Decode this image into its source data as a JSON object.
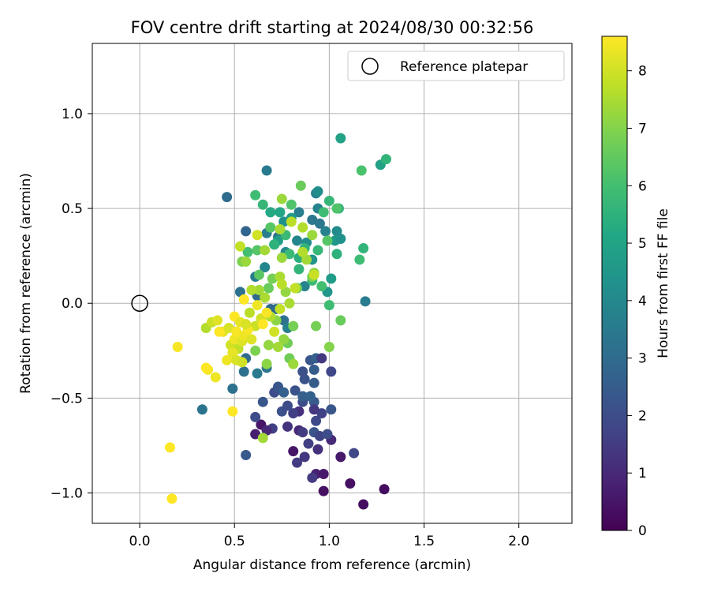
{
  "chart_data": {
    "type": "scatter",
    "title": "FOV centre drift starting at 2024/08/30 00:32:56",
    "xlabel": "Angular distance from reference (arcmin)",
    "ylabel": "Rotation from reference (arcmin)",
    "xlim": [
      -0.25,
      2.28
    ],
    "ylim": [
      -1.16,
      1.37
    ],
    "xticks": [
      0.0,
      0.5,
      1.0,
      1.5,
      2.0
    ],
    "xtick_labels": [
      "0.0",
      "0.5",
      "1.0",
      "1.5",
      "2.0"
    ],
    "yticks": [
      1.0,
      0.5,
      0.0,
      -0.5,
      -1.0
    ],
    "ytick_labels": [
      "1.0",
      "0.5",
      "0.0",
      "−0.5",
      "−1.0"
    ],
    "grid": true,
    "legend": {
      "location": "upper right",
      "entries": [
        {
          "label": "Reference platepar",
          "marker": "open-circle"
        }
      ]
    },
    "reference_point": {
      "x": 0.0,
      "y": 0.0
    },
    "colorbar": {
      "label": "Hours from first FF file",
      "colormap": "viridis",
      "range": [
        0,
        8.6
      ],
      "ticks": [
        0,
        1,
        2,
        3,
        4,
        5,
        6,
        7,
        8
      ]
    },
    "points": [
      {
        "x": 1.18,
        "y": -1.06,
        "h": 0.3
      },
      {
        "x": 1.29,
        "y": -0.98,
        "h": 0.3
      },
      {
        "x": 1.11,
        "y": -0.95,
        "h": 0.4
      },
      {
        "x": 0.97,
        "y": -0.99,
        "h": 0.4
      },
      {
        "x": 0.93,
        "y": -0.9,
        "h": 0.8
      },
      {
        "x": 0.97,
        "y": -0.9,
        "h": 0.6
      },
      {
        "x": 0.81,
        "y": -0.78,
        "h": 0.5
      },
      {
        "x": 1.06,
        "y": -0.81,
        "h": 0.6
      },
      {
        "x": 0.61,
        "y": -0.69,
        "h": 0.7
      },
      {
        "x": 0.64,
        "y": -0.64,
        "h": 0.5
      },
      {
        "x": 0.91,
        "y": -0.92,
        "h": 1.5
      },
      {
        "x": 0.83,
        "y": -0.84,
        "h": 1.5
      },
      {
        "x": 0.87,
        "y": -0.81,
        "h": 1.4
      },
      {
        "x": 0.94,
        "y": -0.77,
        "h": 1.2
      },
      {
        "x": 1.01,
        "y": -0.72,
        "h": 1.0
      },
      {
        "x": 1.13,
        "y": -0.79,
        "h": 1.8
      },
      {
        "x": 0.56,
        "y": -0.8,
        "h": 2.4
      },
      {
        "x": 0.7,
        "y": -0.66,
        "h": 1.6
      },
      {
        "x": 0.67,
        "y": -0.67,
        "h": 1.0
      },
      {
        "x": 0.78,
        "y": -0.65,
        "h": 1.3
      },
      {
        "x": 0.84,
        "y": -0.67,
        "h": 1.0
      },
      {
        "x": 0.86,
        "y": -0.68,
        "h": 1.5
      },
      {
        "x": 0.89,
        "y": -0.74,
        "h": 1.6
      },
      {
        "x": 0.92,
        "y": -0.68,
        "h": 2.2
      },
      {
        "x": 0.95,
        "y": -0.7,
        "h": 1.7
      },
      {
        "x": 0.99,
        "y": -0.69,
        "h": 2.0
      },
      {
        "x": 0.93,
        "y": -0.62,
        "h": 1.9
      },
      {
        "x": 0.96,
        "y": -0.58,
        "h": 1.7
      },
      {
        "x": 0.84,
        "y": -0.57,
        "h": 1.2
      },
      {
        "x": 0.81,
        "y": -0.58,
        "h": 1.6
      },
      {
        "x": 0.75,
        "y": -0.57,
        "h": 2.1
      },
      {
        "x": 0.78,
        "y": -0.54,
        "h": 2.0
      },
      {
        "x": 0.61,
        "y": -0.6,
        "h": 2.0
      },
      {
        "x": 0.65,
        "y": -0.52,
        "h": 2.3
      },
      {
        "x": 0.86,
        "y": -0.52,
        "h": 2.0
      },
      {
        "x": 0.92,
        "y": -0.52,
        "h": 2.4
      },
      {
        "x": 1.01,
        "y": -0.56,
        "h": 2.3
      },
      {
        "x": 0.92,
        "y": -0.56,
        "h": 1.4
      },
      {
        "x": 0.71,
        "y": -0.47,
        "h": 2.0
      },
      {
        "x": 0.73,
        "y": -0.44,
        "h": 2.3
      },
      {
        "x": 0.76,
        "y": -0.47,
        "h": 2.6
      },
      {
        "x": 0.82,
        "y": -0.46,
        "h": 2.2
      },
      {
        "x": 0.86,
        "y": -0.49,
        "h": 2.6
      },
      {
        "x": 0.9,
        "y": -0.49,
        "h": 2.7
      },
      {
        "x": 0.92,
        "y": -0.42,
        "h": 2.5
      },
      {
        "x": 0.87,
        "y": -0.4,
        "h": 2.2
      },
      {
        "x": 0.86,
        "y": -0.36,
        "h": 2.1
      },
      {
        "x": 0.92,
        "y": -0.35,
        "h": 2.5
      },
      {
        "x": 1.01,
        "y": -0.36,
        "h": 1.8
      },
      {
        "x": 0.9,
        "y": -0.3,
        "h": 2.3
      },
      {
        "x": 0.93,
        "y": -0.29,
        "h": 2.6
      },
      {
        "x": 0.96,
        "y": -0.29,
        "h": 1.4
      },
      {
        "x": 0.33,
        "y": -0.56,
        "h": 3.3
      },
      {
        "x": 0.49,
        "y": -0.45,
        "h": 3.2
      },
      {
        "x": 0.55,
        "y": -0.36,
        "h": 3.2
      },
      {
        "x": 0.62,
        "y": -0.37,
        "h": 3.5
      },
      {
        "x": 0.67,
        "y": -0.34,
        "h": 3.3
      },
      {
        "x": 0.56,
        "y": -0.29,
        "h": 3.0
      },
      {
        "x": 0.46,
        "y": 0.56,
        "h": 3.0
      },
      {
        "x": 0.67,
        "y": 0.7,
        "h": 3.5
      },
      {
        "x": 0.56,
        "y": 0.38,
        "h": 2.8
      },
      {
        "x": 0.62,
        "y": 0.04,
        "h": 3.0
      },
      {
        "x": 0.53,
        "y": 0.06,
        "h": 3.2
      },
      {
        "x": 0.72,
        "y": -0.03,
        "h": 3.3
      },
      {
        "x": 0.76,
        "y": -0.09,
        "h": 3.2
      },
      {
        "x": 0.78,
        "y": -0.13,
        "h": 3.7
      },
      {
        "x": 0.69,
        "y": -0.03,
        "h": 2.9
      },
      {
        "x": 0.61,
        "y": 0.14,
        "h": 3.6
      },
      {
        "x": 0.71,
        "y": 0.31,
        "h": 3.1
      },
      {
        "x": 0.73,
        "y": 0.35,
        "h": 3.3
      },
      {
        "x": 0.67,
        "y": 0.37,
        "h": 3.6
      },
      {
        "x": 0.66,
        "y": 0.19,
        "h": 3.9
      },
      {
        "x": 0.83,
        "y": 0.33,
        "h": 3.9
      },
      {
        "x": 0.84,
        "y": 0.48,
        "h": 3.6
      },
      {
        "x": 0.91,
        "y": 0.44,
        "h": 3.4
      },
      {
        "x": 0.93,
        "y": 0.58,
        "h": 3.7
      },
      {
        "x": 0.94,
        "y": 0.5,
        "h": 3.8
      },
      {
        "x": 0.95,
        "y": 0.42,
        "h": 3.4
      },
      {
        "x": 0.98,
        "y": 0.38,
        "h": 3.8
      },
      {
        "x": 1.04,
        "y": 0.38,
        "h": 4.1
      },
      {
        "x": 1.03,
        "y": 0.33,
        "h": 4.6
      },
      {
        "x": 1.06,
        "y": 0.34,
        "h": 4.3
      },
      {
        "x": 1.19,
        "y": 0.01,
        "h": 3.6
      },
      {
        "x": 0.94,
        "y": 0.59,
        "h": 4.2
      },
      {
        "x": 0.77,
        "y": 0.27,
        "h": 4.0
      },
      {
        "x": 0.88,
        "y": 0.32,
        "h": 4.2
      },
      {
        "x": 0.87,
        "y": 0.09,
        "h": 3.8
      },
      {
        "x": 0.91,
        "y": 0.23,
        "h": 4.4
      },
      {
        "x": 0.99,
        "y": 0.06,
        "h": 4.5
      },
      {
        "x": 1.01,
        "y": 0.13,
        "h": 4.7
      },
      {
        "x": 0.76,
        "y": 0.43,
        "h": 4.3
      },
      {
        "x": 0.8,
        "y": 0.45,
        "h": 4.6
      },
      {
        "x": 0.73,
        "y": 0.33,
        "h": 4.8
      },
      {
        "x": 0.69,
        "y": 0.48,
        "h": 5.2
      },
      {
        "x": 0.74,
        "y": 0.48,
        "h": 5.1
      },
      {
        "x": 1.06,
        "y": 0.87,
        "h": 4.9
      },
      {
        "x": 1.27,
        "y": 0.73,
        "h": 4.9
      },
      {
        "x": 1.3,
        "y": 0.76,
        "h": 5.6
      },
      {
        "x": 1.17,
        "y": 0.7,
        "h": 6.1
      },
      {
        "x": 0.61,
        "y": 0.57,
        "h": 5.9
      },
      {
        "x": 0.65,
        "y": 0.52,
        "h": 5.7
      },
      {
        "x": 0.71,
        "y": 0.31,
        "h": 5.5
      },
      {
        "x": 0.77,
        "y": 0.36,
        "h": 5.8
      },
      {
        "x": 0.79,
        "y": 0.26,
        "h": 5.8
      },
      {
        "x": 0.84,
        "y": 0.24,
        "h": 5.4
      },
      {
        "x": 0.84,
        "y": 0.18,
        "h": 5.6
      },
      {
        "x": 0.87,
        "y": 0.29,
        "h": 5.6
      },
      {
        "x": 0.91,
        "y": 0.12,
        "h": 5.8
      },
      {
        "x": 0.94,
        "y": 0.28,
        "h": 5.7
      },
      {
        "x": 0.97,
        "y": 0.48,
        "h": 5.9
      },
      {
        "x": 1.0,
        "y": 0.54,
        "h": 5.7
      },
      {
        "x": 1.05,
        "y": 0.5,
        "h": 5.4
      },
      {
        "x": 1.0,
        "y": -0.01,
        "h": 5.9
      },
      {
        "x": 1.04,
        "y": 0.26,
        "h": 5.5
      },
      {
        "x": 1.16,
        "y": 0.23,
        "h": 5.9
      },
      {
        "x": 1.18,
        "y": 0.29,
        "h": 5.6
      },
      {
        "x": 0.99,
        "y": 0.33,
        "h": 6.3
      },
      {
        "x": 1.04,
        "y": 0.5,
        "h": 6.2
      },
      {
        "x": 0.96,
        "y": 0.09,
        "h": 6.0
      },
      {
        "x": 0.8,
        "y": 0.52,
        "h": 6.2
      },
      {
        "x": 0.69,
        "y": 0.4,
        "h": 6.3
      },
      {
        "x": 0.62,
        "y": 0.28,
        "h": 6.3
      },
      {
        "x": 0.57,
        "y": 0.27,
        "h": 6.0
      },
      {
        "x": 0.63,
        "y": 0.15,
        "h": 6.4
      },
      {
        "x": 0.68,
        "y": 0.08,
        "h": 6.6
      },
      {
        "x": 0.7,
        "y": 0.13,
        "h": 6.8
      },
      {
        "x": 0.83,
        "y": 0.08,
        "h": 6.6
      },
      {
        "x": 0.85,
        "y": 0.62,
        "h": 6.6
      },
      {
        "x": 0.91,
        "y": 0.14,
        "h": 6.9
      },
      {
        "x": 1.06,
        "y": -0.09,
        "h": 6.6
      },
      {
        "x": 0.93,
        "y": -0.12,
        "h": 6.8
      },
      {
        "x": 1.0,
        "y": -0.23,
        "h": 7.0
      },
      {
        "x": 0.81,
        "y": -0.12,
        "h": 6.8
      },
      {
        "x": 0.78,
        "y": -0.21,
        "h": 6.7
      },
      {
        "x": 0.76,
        "y": -0.19,
        "h": 7.2
      },
      {
        "x": 0.79,
        "y": -0.29,
        "h": 6.7
      },
      {
        "x": 0.81,
        "y": -0.32,
        "h": 7.3
      },
      {
        "x": 0.67,
        "y": -0.32,
        "h": 7.1
      },
      {
        "x": 0.68,
        "y": -0.22,
        "h": 7.2
      },
      {
        "x": 0.73,
        "y": -0.23,
        "h": 7.4
      },
      {
        "x": 0.61,
        "y": -0.25,
        "h": 6.9
      },
      {
        "x": 0.65,
        "y": -0.71,
        "h": 7.4
      },
      {
        "x": 0.72,
        "y": -0.09,
        "h": 7.1
      },
      {
        "x": 0.77,
        "y": 0.06,
        "h": 7.2
      },
      {
        "x": 0.79,
        "y": 0.0,
        "h": 7.5
      },
      {
        "x": 0.66,
        "y": 0.03,
        "h": 7.5
      },
      {
        "x": 0.63,
        "y": 0.07,
        "h": 7.4
      },
      {
        "x": 0.54,
        "y": 0.22,
        "h": 6.9
      },
      {
        "x": 0.56,
        "y": 0.22,
        "h": 7.3
      },
      {
        "x": 0.59,
        "y": 0.07,
        "h": 7.6
      },
      {
        "x": 0.74,
        "y": 0.14,
        "h": 7.5
      },
      {
        "x": 0.75,
        "y": 0.24,
        "h": 7.3
      },
      {
        "x": 0.75,
        "y": 0.1,
        "h": 7.7
      },
      {
        "x": 0.88,
        "y": 0.23,
        "h": 7.4
      },
      {
        "x": 0.91,
        "y": 0.36,
        "h": 7.3
      },
      {
        "x": 0.92,
        "y": 0.16,
        "h": 7.1
      },
      {
        "x": 0.86,
        "y": 0.4,
        "h": 7.6
      },
      {
        "x": 0.8,
        "y": 0.43,
        "h": 7.7
      },
      {
        "x": 0.74,
        "y": 0.39,
        "h": 7.5
      },
      {
        "x": 0.75,
        "y": 0.55,
        "h": 7.3
      },
      {
        "x": 0.53,
        "y": 0.3,
        "h": 7.8
      },
      {
        "x": 0.62,
        "y": 0.36,
        "h": 8.0
      },
      {
        "x": 0.82,
        "y": 0.08,
        "h": 7.8
      },
      {
        "x": 0.86,
        "y": 0.27,
        "h": 7.6
      },
      {
        "x": 0.92,
        "y": 0.15,
        "h": 7.9
      },
      {
        "x": 0.66,
        "y": 0.28,
        "h": 7.4
      },
      {
        "x": 0.58,
        "y": -0.05,
        "h": 7.7
      },
      {
        "x": 0.61,
        "y": -0.12,
        "h": 7.9
      },
      {
        "x": 0.64,
        "y": -0.08,
        "h": 8.0
      },
      {
        "x": 0.69,
        "y": -0.07,
        "h": 7.6
      },
      {
        "x": 0.74,
        "y": -0.03,
        "h": 7.8
      },
      {
        "x": 0.71,
        "y": -0.15,
        "h": 8.0
      },
      {
        "x": 0.35,
        "y": -0.13,
        "h": 7.6
      },
      {
        "x": 0.38,
        "y": -0.1,
        "h": 7.9
      },
      {
        "x": 0.41,
        "y": -0.09,
        "h": 8.2
      },
      {
        "x": 0.44,
        "y": -0.15,
        "h": 8.3
      },
      {
        "x": 0.47,
        "y": -0.13,
        "h": 8.1
      },
      {
        "x": 0.48,
        "y": -0.22,
        "h": 8.0
      },
      {
        "x": 0.5,
        "y": -0.19,
        "h": 8.4
      },
      {
        "x": 0.51,
        "y": -0.15,
        "h": 8.5
      },
      {
        "x": 0.52,
        "y": -0.24,
        "h": 7.8
      },
      {
        "x": 0.54,
        "y": -0.2,
        "h": 8.2
      },
      {
        "x": 0.55,
        "y": -0.17,
        "h": 8.4
      },
      {
        "x": 0.57,
        "y": -0.14,
        "h": 8.5
      },
      {
        "x": 0.5,
        "y": -0.07,
        "h": 8.6
      },
      {
        "x": 0.53,
        "y": -0.1,
        "h": 8.3
      },
      {
        "x": 0.56,
        "y": -0.11,
        "h": 8.1
      },
      {
        "x": 0.59,
        "y": -0.19,
        "h": 8.2
      },
      {
        "x": 0.46,
        "y": -0.3,
        "h": 8.4
      },
      {
        "x": 0.49,
        "y": -0.26,
        "h": 8.3
      },
      {
        "x": 0.51,
        "y": -0.3,
        "h": 8.1
      },
      {
        "x": 0.54,
        "y": -0.31,
        "h": 8.0
      },
      {
        "x": 0.36,
        "y": -0.35,
        "h": 8.5
      },
      {
        "x": 0.35,
        "y": -0.34,
        "h": 8.6
      },
      {
        "x": 0.4,
        "y": -0.39,
        "h": 8.4
      },
      {
        "x": 0.2,
        "y": -0.23,
        "h": 8.5
      },
      {
        "x": 0.16,
        "y": -0.76,
        "h": 8.6
      },
      {
        "x": 0.17,
        "y": -1.03,
        "h": 8.6
      },
      {
        "x": 0.49,
        "y": -0.57,
        "h": 8.6
      },
      {
        "x": 0.62,
        "y": -0.01,
        "h": 8.4
      },
      {
        "x": 0.67,
        "y": -0.05,
        "h": 8.5
      },
      {
        "x": 0.65,
        "y": -0.11,
        "h": 8.6
      },
      {
        "x": 0.55,
        "y": 0.02,
        "h": 8.6
      },
      {
        "x": 0.42,
        "y": -0.15,
        "h": 8.7
      }
    ]
  }
}
